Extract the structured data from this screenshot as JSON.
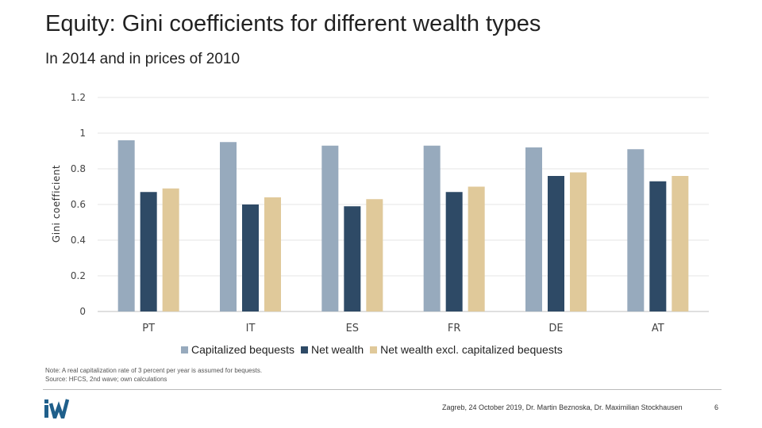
{
  "page": {
    "title": "Equity: Gini coefficients for different wealth types",
    "subtitle": "In 2014 and in prices of 2010",
    "note_line1": "Note: A real capitalization rate of 3 percent per year is assumed for bequests.",
    "note_line2": "Source: HFCS, 2nd wave; own calculations",
    "footer": "Zagreb, 24 October 2019, Dr. Martin Beznoska, Dr. Maximilian Stockhausen",
    "page_number": "6",
    "logo_text": "iW",
    "logo_color": "#1f5f8b"
  },
  "chart_data": {
    "type": "bar",
    "title": "",
    "xlabel": "",
    "ylabel": "Gini coefficient",
    "ylim": [
      0,
      1.2
    ],
    "yticks": [
      "0",
      "0.2",
      "0.4",
      "0.6",
      "0.8",
      "1",
      "1.2"
    ],
    "grid": true,
    "legend_position": "bottom",
    "categories": [
      "PT",
      "IT",
      "ES",
      "FR",
      "DE",
      "AT"
    ],
    "series": [
      {
        "name": "Capitalized bequests",
        "color": "#97aabd",
        "values": [
          0.96,
          0.95,
          0.93,
          0.93,
          0.92,
          0.91
        ]
      },
      {
        "name": "Net wealth",
        "color": "#2e4a66",
        "values": [
          0.67,
          0.6,
          0.59,
          0.67,
          0.76,
          0.73
        ]
      },
      {
        "name": "Net wealth excl. capitalized bequests",
        "color": "#e0c99a",
        "values": [
          0.69,
          0.64,
          0.63,
          0.7,
          0.78,
          0.76
        ]
      }
    ]
  }
}
